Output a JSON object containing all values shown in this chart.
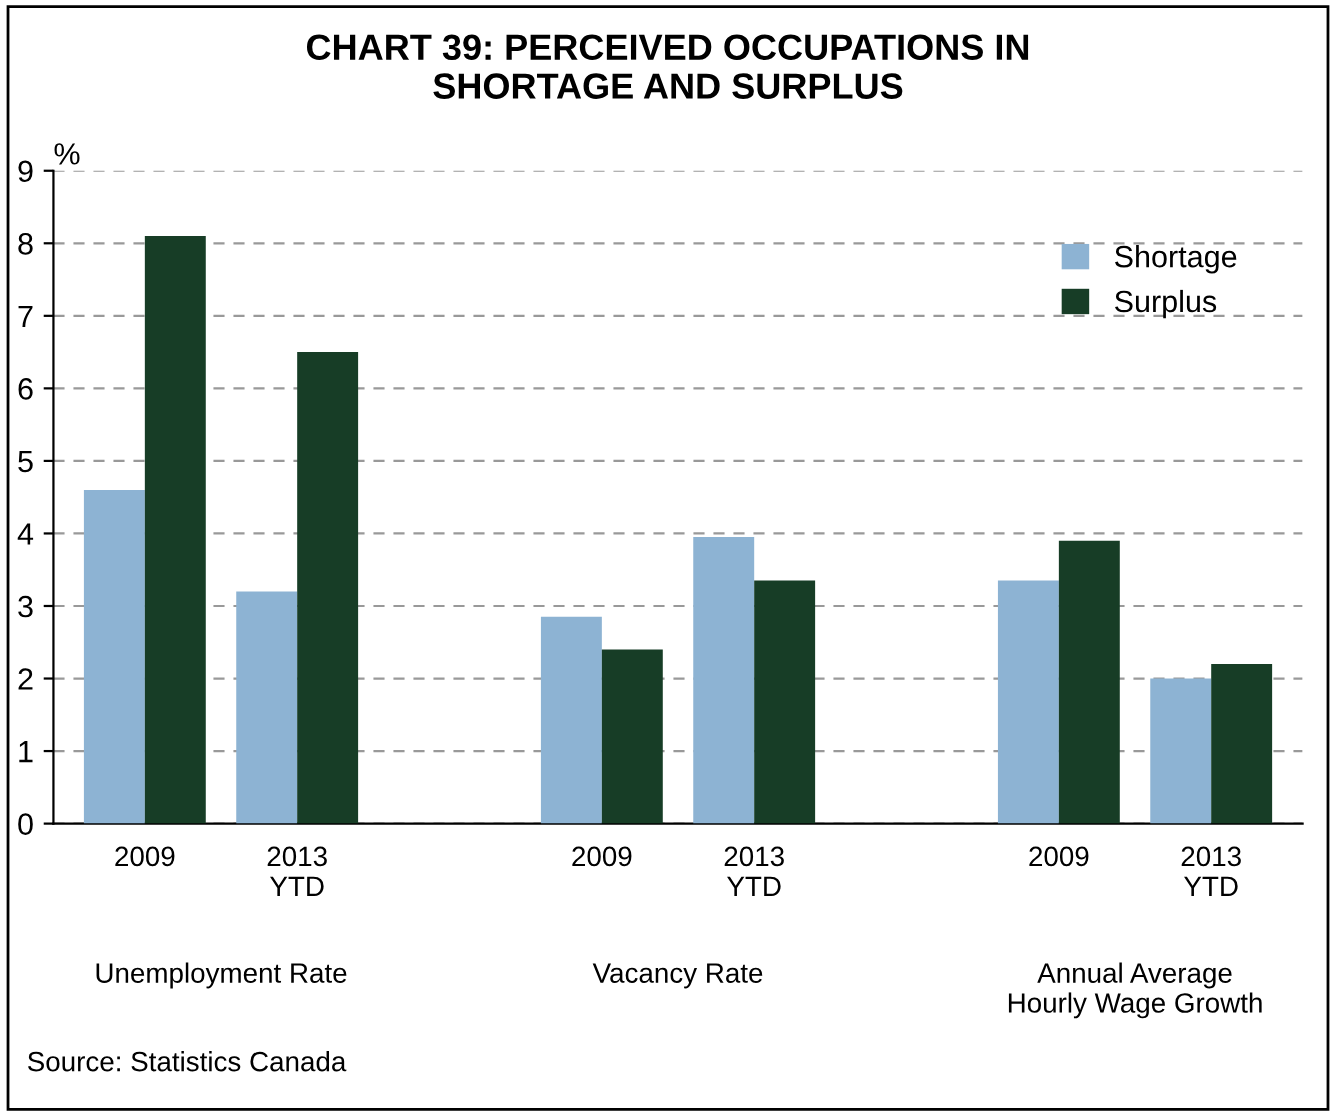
{
  "chart_data": {
    "type": "bar",
    "title": "CHART 39: PERCEIVED OCCUPATIONS IN\nSHORTAGE AND SURPLUS",
    "ylabel": "%",
    "categories": [
      "2009",
      "2013\nYTD",
      null,
      "2009",
      "2013\nYTD",
      null,
      "2009",
      "2013\nYTD"
    ],
    "series": [
      {
        "name": "Shortage",
        "color": "#8db3d3",
        "values": [
          4.6,
          3.2,
          null,
          2.85,
          3.95,
          null,
          3.35,
          2.0
        ]
      },
      {
        "name": "Surplus",
        "color": "#173d26",
        "values": [
          8.1,
          6.5,
          null,
          2.4,
          3.35,
          null,
          3.9,
          2.2
        ]
      }
    ],
    "ylim": [
      0,
      9
    ],
    "yticks": [
      0,
      1,
      2,
      3,
      4,
      5,
      6,
      7,
      8,
      9
    ],
    "grid": "y",
    "legend": "top right",
    "annotations": [
      "Unemployment Rate",
      "Vacancy Rate",
      "Annual Average\nHourly Wage Growth",
      "Source: Statistics Canada"
    ]
  }
}
